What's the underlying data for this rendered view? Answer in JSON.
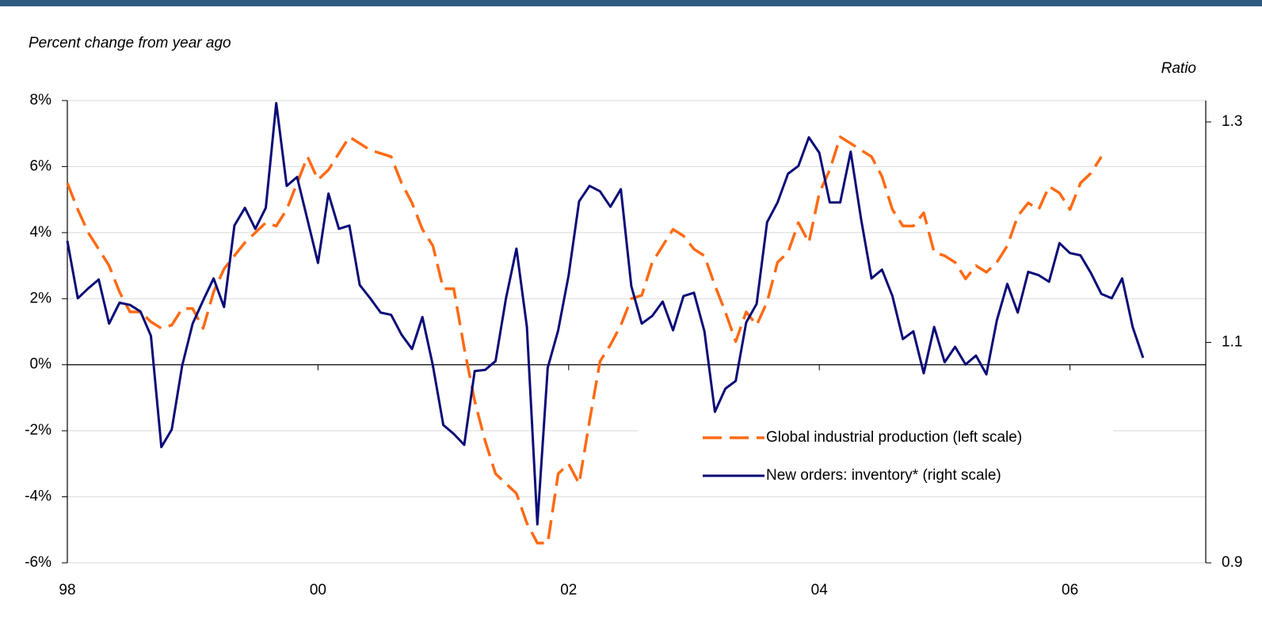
{
  "chart_data": {
    "type": "line",
    "subtitle": "Percent change from year ago",
    "y2_label": "Ratio",
    "x": [
      0,
      1,
      2,
      3,
      4,
      5,
      6,
      7,
      8,
      9,
      10,
      11,
      12,
      13,
      14,
      15,
      16,
      17,
      18,
      19,
      20,
      21,
      22,
      23,
      24,
      25,
      26,
      27,
      28,
      29,
      30,
      31,
      32,
      33,
      34,
      35,
      36,
      37,
      38,
      39,
      40,
      41,
      42,
      43,
      44,
      45,
      46,
      47,
      48,
      49,
      50,
      51,
      52,
      53,
      54,
      55,
      56,
      57,
      58,
      59,
      60,
      61,
      62,
      63,
      64,
      65,
      66,
      67,
      68,
      69,
      70,
      71,
      72,
      73,
      74,
      75,
      76,
      77,
      78,
      79,
      80,
      81,
      82,
      83,
      84,
      85,
      86,
      87,
      88,
      89,
      90,
      91,
      92,
      93,
      94,
      95,
      96,
      97,
      98,
      99,
      100,
      101,
      102,
      103
    ],
    "xlim": [
      0,
      109
    ],
    "xticks": [
      {
        "value": 0,
        "label": "98"
      },
      {
        "value": 24,
        "label": "00"
      },
      {
        "value": 48,
        "label": "02"
      },
      {
        "value": 72,
        "label": "04"
      },
      {
        "value": 96,
        "label": "06"
      }
    ],
    "ylim": [
      -6,
      8
    ],
    "yticks": [
      {
        "value": -6,
        "label": "-6%"
      },
      {
        "value": -4,
        "label": "-4%"
      },
      {
        "value": -2,
        "label": "-2%"
      },
      {
        "value": 0,
        "label": "0%"
      },
      {
        "value": 2,
        "label": "2%"
      },
      {
        "value": 4,
        "label": "4%"
      },
      {
        "value": 6,
        "label": "6%"
      },
      {
        "value": 8,
        "label": "8%"
      }
    ],
    "y2lim": [
      0.9,
      1.3194
    ],
    "y2ticks": [
      0.9,
      1.1,
      1.3
    ],
    "grid": true,
    "legend": "lower-right",
    "series": [
      {
        "name": "Global industrial production (left scale)",
        "color": "#ff6a13",
        "dashed": true,
        "values": [
          5.5,
          4.7,
          4.0,
          3.5,
          3.0,
          2.2,
          1.6,
          1.6,
          1.3,
          1.1,
          1.2,
          1.7,
          1.7,
          1.1,
          2.2,
          2.9,
          3.3,
          3.7,
          4.0,
          4.3,
          4.2,
          4.7,
          5.5,
          6.3,
          5.6,
          5.9,
          6.4,
          6.9,
          6.7,
          6.5,
          6.4,
          6.3,
          5.5,
          4.9,
          4.1,
          3.6,
          2.3,
          2.3,
          0.5,
          -1.1,
          -2.3,
          -3.3,
          -3.6,
          -3.9,
          -4.8,
          -5.4,
          -5.4,
          -3.3,
          -3.0,
          -3.6,
          -1.7,
          0.1,
          0.6,
          1.2,
          2.0,
          2.1,
          3.1,
          3.6,
          4.1,
          3.9,
          3.5,
          3.3,
          2.4,
          1.6,
          0.7,
          1.6,
          1.2,
          1.9,
          3.1,
          3.4,
          4.3,
          3.7,
          5.2,
          5.9,
          6.9,
          6.7,
          6.5,
          6.3,
          5.7,
          4.7,
          4.2,
          4.2,
          4.6,
          3.4,
          3.3,
          3.1,
          2.6,
          3.0,
          2.8,
          3.1,
          3.6,
          4.5,
          4.9,
          4.7,
          5.4,
          5.2,
          4.7,
          5.5,
          5.8,
          6.3,
          null,
          null,
          null,
          null
        ]
      },
      {
        "name": "New orders: inventory* (right scale)",
        "color": "#0a0a78",
        "axis": "y2",
        "values": [
          1.192,
          1.14,
          1.149,
          1.157,
          1.117,
          1.136,
          1.134,
          1.128,
          1.106,
          1.005,
          1.021,
          1.079,
          1.117,
          1.138,
          1.158,
          1.132,
          1.206,
          1.222,
          1.203,
          1.222,
          1.317,
          1.242,
          1.25,
          1.211,
          1.172,
          1.235,
          1.203,
          1.206,
          1.152,
          1.14,
          1.127,
          1.125,
          1.107,
          1.094,
          1.123,
          1.079,
          1.025,
          1.017,
          1.007,
          1.074,
          1.075,
          1.083,
          1.14,
          1.185,
          1.114,
          0.935,
          1.077,
          1.111,
          1.161,
          1.228,
          1.242,
          1.237,
          1.223,
          1.239,
          1.151,
          1.117,
          1.124,
          1.137,
          1.111,
          1.142,
          1.145,
          1.11,
          1.037,
          1.058,
          1.065,
          1.118,
          1.135,
          1.209,
          1.227,
          1.253,
          1.26,
          1.286,
          1.272,
          1.227,
          1.227,
          1.273,
          1.212,
          1.158,
          1.166,
          1.142,
          1.103,
          1.11,
          1.072,
          1.114,
          1.082,
          1.096,
          1.08,
          1.088,
          1.071,
          1.12,
          1.153,
          1.127,
          1.164,
          1.161,
          1.155,
          1.19,
          1.181,
          1.179,
          1.163,
          1.144,
          1.14,
          1.158,
          1.114,
          1.086
        ]
      }
    ]
  }
}
